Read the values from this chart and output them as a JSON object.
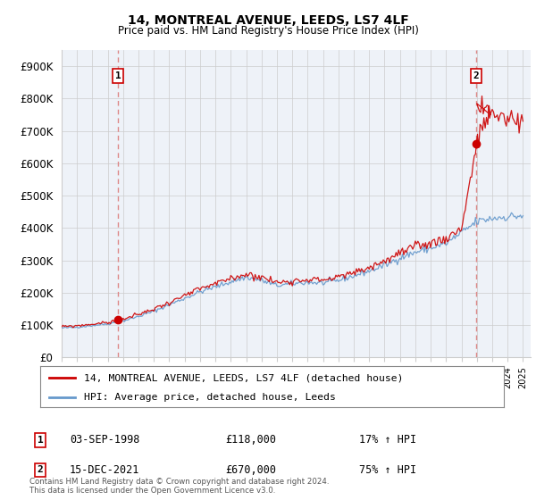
{
  "title": "14, MONTREAL AVENUE, LEEDS, LS7 4LF",
  "subtitle": "Price paid vs. HM Land Registry's House Price Index (HPI)",
  "ylabel_ticks": [
    "£0",
    "£100K",
    "£200K",
    "£300K",
    "£400K",
    "£500K",
    "£600K",
    "£700K",
    "£800K",
    "£900K"
  ],
  "ytick_values": [
    0,
    100000,
    200000,
    300000,
    400000,
    500000,
    600000,
    700000,
    800000,
    900000
  ],
  "ylim": [
    0,
    950000
  ],
  "xlim_start": 1995.0,
  "xlim_end": 2025.5,
  "sale1_x": 1998.67,
  "sale1_y": 118000,
  "sale2_x": 2021.96,
  "sale2_y": 660000,
  "sale1_label": "1",
  "sale2_label": "2",
  "legend_line1": "14, MONTREAL AVENUE, LEEDS, LS7 4LF (detached house)",
  "legend_line2": "HPI: Average price, detached house, Leeds",
  "line_color_red": "#cc0000",
  "line_color_blue": "#6699cc",
  "vline_color": "#dd8888",
  "dot_color_red": "#cc0000",
  "background_color": "#ffffff",
  "plot_bg_color": "#eef2f8",
  "grid_color": "#cccccc",
  "footnote": "Contains HM Land Registry data © Crown copyright and database right 2024.\nThis data is licensed under the Open Government Licence v3.0."
}
